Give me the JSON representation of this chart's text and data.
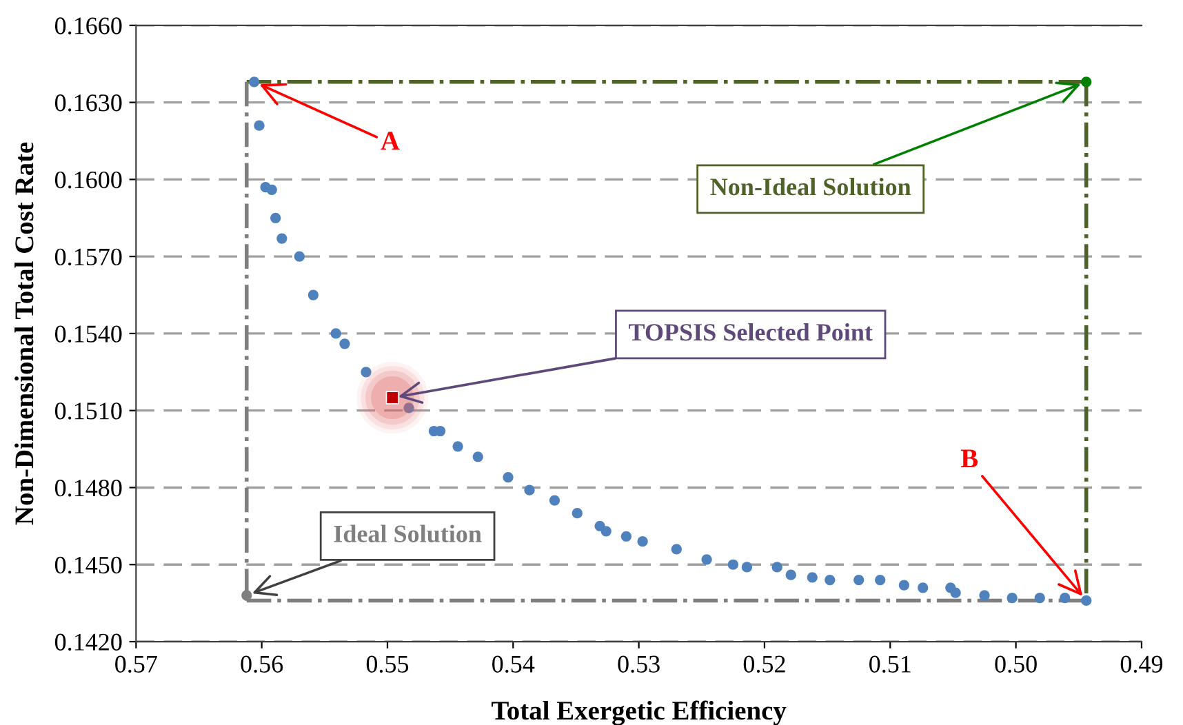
{
  "chart_data": {
    "type": "scatter",
    "xlabel": "Total Exergetic Efficiency",
    "ylabel": "Non-Dimensional Total Cost Rate",
    "xlim": [
      0.57,
      0.49
    ],
    "xticks": [
      {
        "value": 0.57,
        "label": "0.57"
      },
      {
        "value": 0.56,
        "label": "0.56"
      },
      {
        "value": 0.55,
        "label": "0.55"
      },
      {
        "value": 0.54,
        "label": "0.54"
      },
      {
        "value": 0.53,
        "label": "0.53"
      },
      {
        "value": 0.52,
        "label": "0.52"
      },
      {
        "value": 0.51,
        "label": "0.51"
      },
      {
        "value": 0.5,
        "label": "0.50"
      },
      {
        "value": 0.49,
        "label": "0.49"
      }
    ],
    "ylim": [
      0.142,
      0.166
    ],
    "yticks": [
      {
        "value": 0.142,
        "label": "0.1420"
      },
      {
        "value": 0.145,
        "label": "0.1450"
      },
      {
        "value": 0.148,
        "label": "0.1480"
      },
      {
        "value": 0.151,
        "label": "0.1510"
      },
      {
        "value": 0.154,
        "label": "0.1540"
      },
      {
        "value": 0.157,
        "label": "0.1570"
      },
      {
        "value": 0.16,
        "label": "0.1600"
      },
      {
        "value": 0.163,
        "label": "0.1630"
      },
      {
        "value": 0.166,
        "label": "0.1660"
      }
    ],
    "grid": "y",
    "legend": false,
    "series": [
      {
        "marker": "circle",
        "color": "#4f81bd",
        "x": [
          0.5606,
          0.5602,
          0.5597,
          0.5592,
          0.5589,
          0.5584,
          0.557,
          0.5559,
          0.5541,
          0.5534,
          0.5517,
          0.5483,
          0.5463,
          0.5458,
          0.5444,
          0.5428,
          0.5404,
          0.5387,
          0.5367,
          0.5349,
          0.5331,
          0.5326,
          0.531,
          0.5297,
          0.527,
          0.5246,
          0.5225,
          0.5214,
          0.519,
          0.5179,
          0.5162,
          0.5148,
          0.5125,
          0.5108,
          0.5089,
          0.5074,
          0.5052,
          0.5048,
          0.5025,
          0.5003,
          0.4981,
          0.4961,
          0.4944
        ],
        "values": [
          0.1638,
          0.1621,
          0.1597,
          0.1596,
          0.1585,
          0.1577,
          0.157,
          0.1555,
          0.154,
          0.1536,
          0.1525,
          0.1511,
          0.1502,
          0.1502,
          0.1496,
          0.1492,
          0.1484,
          0.1479,
          0.1475,
          0.147,
          0.1465,
          0.1463,
          0.1461,
          0.1459,
          0.1456,
          0.1452,
          0.145,
          0.1449,
          0.1449,
          0.1446,
          0.1445,
          0.1444,
          0.1444,
          0.1444,
          0.1442,
          0.1441,
          0.1441,
          0.1439,
          0.1438,
          0.1437,
          0.1437,
          0.1437,
          0.1436
        ]
      },
      {
        "marker": "square",
        "color": "#c00000",
        "x": [
          0.5496
        ],
        "values": [
          0.1515
        ]
      },
      {
        "marker": "circle",
        "color": "#7f7f7f",
        "x": [
          0.5612
        ],
        "values": [
          0.1438
        ]
      },
      {
        "marker": "circle",
        "color": "#008000",
        "x": [
          0.4944
        ],
        "values": [
          0.1638
        ]
      },
      {
        "type": "line",
        "line_style": "dashdot",
        "marker": "none",
        "color": "#4f6228",
        "x": [
          0.5612,
          0.4944
        ],
        "values": [
          0.1638,
          0.1638
        ]
      },
      {
        "type": "line",
        "line_style": "dashdot",
        "marker": "none",
        "color": "#4f6228",
        "x": [
          0.4944,
          0.4944
        ],
        "values": [
          0.1638,
          0.1436
        ]
      },
      {
        "type": "line",
        "line_style": "dashdot",
        "marker": "none",
        "color": "#7f7f7f",
        "x": [
          0.5612,
          0.4944
        ],
        "values": [
          0.1436,
          0.1436
        ]
      },
      {
        "type": "line",
        "line_style": "dashdot",
        "marker": "none",
        "color": "#7f7f7f",
        "x": [
          0.5612,
          0.5612
        ],
        "values": [
          0.1638,
          0.1436
        ]
      }
    ],
    "annotations": [
      {
        "text": "A",
        "x": 0.5606,
        "y": 0.1638
      },
      {
        "text": "B",
        "x": 0.4944,
        "y": 0.1436
      },
      {
        "text": "Non-Ideal Solution",
        "x": 0.4944,
        "y": 0.1638
      },
      {
        "text": "TOPSIS Selected Point",
        "x": 0.5496,
        "y": 0.1515
      },
      {
        "text": "Ideal Solution",
        "x": 0.5612,
        "y": 0.1438
      }
    ]
  }
}
